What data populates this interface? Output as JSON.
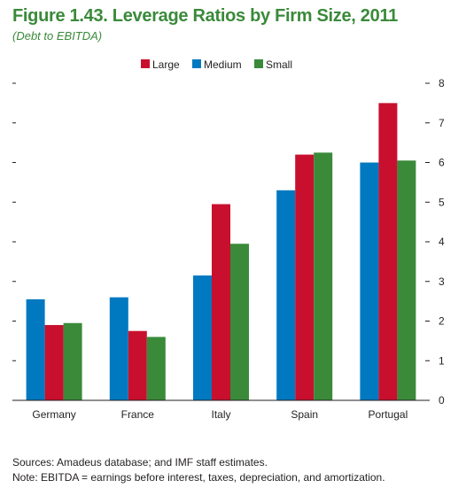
{
  "chart_data": {
    "type": "bar",
    "title": "Figure 1.43. Leverage Ratios by Firm Size, 2011",
    "subtitle": "(Debt to EBITDA)",
    "categories": [
      "Germany",
      "France",
      "Italy",
      "Spain",
      "Portugal"
    ],
    "series": [
      {
        "name": "Medium",
        "color": "#0079c1",
        "values": [
          2.55,
          2.6,
          3.15,
          5.3,
          6.0
        ]
      },
      {
        "name": "Large",
        "color": "#c8102e",
        "values": [
          1.9,
          1.75,
          4.95,
          6.2,
          7.5
        ]
      },
      {
        "name": "Small",
        "color": "#3a8a3a",
        "values": [
          1.95,
          1.6,
          3.95,
          6.25,
          6.05
        ]
      }
    ],
    "legend_order": [
      "Large",
      "Medium",
      "Small"
    ],
    "legend_position": "top-center",
    "ylim": [
      0,
      8
    ],
    "yticks": [
      0,
      1,
      2,
      3,
      4,
      5,
      6,
      7,
      8
    ],
    "y_axis_side": "right",
    "xlabel": "",
    "ylabel": "",
    "grid": false
  },
  "notes": {
    "sources": "Sources: Amadeus database; and IMF staff estimates.",
    "note": "Note: EBITDA = earnings before interest, taxes, depreciation, and amortization."
  }
}
